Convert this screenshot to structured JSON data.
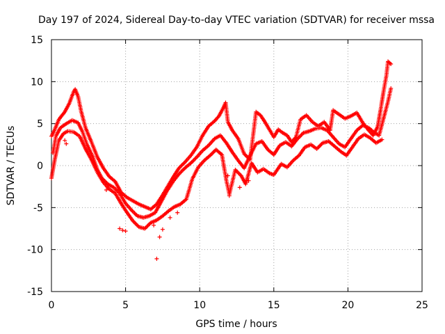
{
  "chart_data": {
    "type": "scatter",
    "title": "Day 197 of 2024, Sidereal Day-to-day VTEC variation (SDTVAR) for receiver mssa",
    "xlabel": "GPS time / hours",
    "ylabel": "SDTVAR / TECUs",
    "xlim": [
      0,
      25
    ],
    "ylim": [
      -15,
      15
    ],
    "x_ticks": [
      0,
      5,
      10,
      15,
      20,
      25
    ],
    "y_ticks": [
      -15,
      -10,
      -5,
      0,
      5,
      10,
      15
    ],
    "grid": true,
    "marker": "plus",
    "color": "#ff0000",
    "series": [
      {
        "name": "upper trace",
        "points": [
          [
            0.0,
            3.5
          ],
          [
            0.2,
            4.2
          ],
          [
            0.5,
            5.5
          ],
          [
            0.9,
            6.4
          ],
          [
            1.2,
            7.4
          ],
          [
            1.5,
            8.8
          ],
          [
            1.6,
            9.1
          ],
          [
            1.8,
            8.2
          ],
          [
            2.0,
            6.5
          ],
          [
            2.3,
            4.5
          ],
          [
            2.7,
            2.8
          ],
          [
            3.1,
            1.0
          ],
          [
            3.5,
            -0.3
          ],
          [
            3.9,
            -1.3
          ],
          [
            4.3,
            -1.9
          ],
          [
            4.7,
            -3.2
          ],
          [
            5.1,
            -3.8
          ],
          [
            5.5,
            -4.2
          ],
          [
            5.9,
            -4.6
          ],
          [
            6.3,
            -4.9
          ],
          [
            6.7,
            -5.2
          ],
          [
            7.1,
            -4.6
          ],
          [
            7.5,
            -3.5
          ],
          [
            7.8,
            -2.6
          ],
          [
            8.2,
            -1.4
          ],
          [
            8.6,
            -0.3
          ],
          [
            9.0,
            0.4
          ],
          [
            9.4,
            1.2
          ],
          [
            9.8,
            2.2
          ],
          [
            10.2,
            3.6
          ],
          [
            10.6,
            4.7
          ],
          [
            11.0,
            5.3
          ],
          [
            11.3,
            5.9
          ],
          [
            11.6,
            6.9
          ],
          [
            11.75,
            7.5
          ],
          [
            11.9,
            5.2
          ],
          [
            12.2,
            4.2
          ],
          [
            12.6,
            3.2
          ],
          [
            13.0,
            1.4
          ],
          [
            13.4,
            0.7
          ],
          [
            13.8,
            6.4
          ],
          [
            14.1,
            6.0
          ],
          [
            14.4,
            5.2
          ],
          [
            14.7,
            4.3
          ],
          [
            15.0,
            3.4
          ],
          [
            15.3,
            4.3
          ],
          [
            15.6,
            3.9
          ],
          [
            15.9,
            3.6
          ],
          [
            16.2,
            2.8
          ],
          [
            16.5,
            3.4
          ],
          [
            16.8,
            5.5
          ],
          [
            17.2,
            6.0
          ],
          [
            17.6,
            5.2
          ],
          [
            18.0,
            4.7
          ],
          [
            18.4,
            5.2
          ],
          [
            18.8,
            4.2
          ],
          [
            19.0,
            6.6
          ],
          [
            19.4,
            6.1
          ],
          [
            19.8,
            5.6
          ],
          [
            20.2,
            5.9
          ],
          [
            20.6,
            6.3
          ],
          [
            21.0,
            5.1
          ],
          [
            21.4,
            4.2
          ],
          [
            21.7,
            3.6
          ],
          [
            22.0,
            4.6
          ],
          [
            22.2,
            6.6
          ],
          [
            22.4,
            8.8
          ],
          [
            22.6,
            10.8
          ],
          [
            22.7,
            12.4
          ],
          [
            22.9,
            12.1
          ]
        ]
      },
      {
        "name": "middle trace",
        "points": [
          [
            0.1,
            1.5
          ],
          [
            0.3,
            3.5
          ],
          [
            0.6,
            4.5
          ],
          [
            1.0,
            5.0
          ],
          [
            1.4,
            5.4
          ],
          [
            1.8,
            5.1
          ],
          [
            2.1,
            4.0
          ],
          [
            2.4,
            2.5
          ],
          [
            2.8,
            1.0
          ],
          [
            3.1,
            -0.5
          ],
          [
            3.4,
            -1.5
          ],
          [
            3.8,
            -2.2
          ],
          [
            4.2,
            -2.6
          ],
          [
            4.6,
            -3.3
          ],
          [
            5.0,
            -4.5
          ],
          [
            5.4,
            -5.3
          ],
          [
            5.8,
            -6.0
          ],
          [
            6.2,
            -6.2
          ],
          [
            6.6,
            -6.0
          ],
          [
            7.0,
            -5.6
          ],
          [
            7.4,
            -4.3
          ],
          [
            7.8,
            -3.0
          ],
          [
            8.2,
            -1.9
          ],
          [
            8.6,
            -1.0
          ],
          [
            9.0,
            -0.3
          ],
          [
            9.4,
            0.3
          ],
          [
            9.8,
            1.0
          ],
          [
            10.2,
            1.8
          ],
          [
            10.6,
            2.4
          ],
          [
            11.0,
            3.2
          ],
          [
            11.4,
            3.6
          ],
          [
            11.8,
            2.7
          ],
          [
            12.2,
            1.6
          ],
          [
            12.6,
            0.6
          ],
          [
            13.0,
            -0.3
          ],
          [
            13.4,
            1.2
          ],
          [
            13.8,
            2.6
          ],
          [
            14.2,
            2.9
          ],
          [
            14.6,
            1.9
          ],
          [
            15.0,
            1.3
          ],
          [
            15.4,
            2.4
          ],
          [
            15.8,
            2.8
          ],
          [
            16.2,
            2.3
          ],
          [
            16.6,
            3.2
          ],
          [
            17.0,
            3.9
          ],
          [
            17.4,
            4.1
          ],
          [
            17.8,
            4.4
          ],
          [
            18.2,
            4.5
          ],
          [
            18.6,
            4.2
          ],
          [
            19.0,
            3.4
          ],
          [
            19.4,
            2.6
          ],
          [
            19.8,
            2.2
          ],
          [
            20.2,
            3.2
          ],
          [
            20.6,
            4.2
          ],
          [
            21.0,
            4.8
          ],
          [
            21.4,
            4.5
          ],
          [
            21.8,
            3.9
          ],
          [
            22.1,
            3.6
          ],
          [
            22.4,
            5.6
          ],
          [
            22.7,
            7.6
          ],
          [
            22.9,
            9.2
          ]
        ]
      },
      {
        "name": "lower trace",
        "points": [
          [
            0.0,
            -1.5
          ],
          [
            0.2,
            0.5
          ],
          [
            0.5,
            3.0
          ],
          [
            0.8,
            3.8
          ],
          [
            1.1,
            4.1
          ],
          [
            1.5,
            4.0
          ],
          [
            1.9,
            3.5
          ],
          [
            2.3,
            2.0
          ],
          [
            2.7,
            0.7
          ],
          [
            3.1,
            -0.8
          ],
          [
            3.5,
            -2.0
          ],
          [
            3.9,
            -2.8
          ],
          [
            4.3,
            -3.3
          ],
          [
            4.7,
            -4.5
          ],
          [
            5.1,
            -5.6
          ],
          [
            5.5,
            -6.6
          ],
          [
            5.9,
            -7.3
          ],
          [
            6.3,
            -7.5
          ],
          [
            6.7,
            -6.8
          ],
          [
            7.1,
            -6.5
          ],
          [
            7.5,
            -6.0
          ],
          [
            7.9,
            -5.4
          ],
          [
            8.3,
            -4.9
          ],
          [
            8.7,
            -4.6
          ],
          [
            9.1,
            -4.0
          ],
          [
            9.5,
            -1.6
          ],
          [
            9.9,
            -0.2
          ],
          [
            10.3,
            0.6
          ],
          [
            10.7,
            1.2
          ],
          [
            11.1,
            1.9
          ],
          [
            11.5,
            1.3
          ],
          [
            11.8,
            -1.8
          ],
          [
            12.0,
            -3.4
          ],
          [
            12.4,
            -0.5
          ],
          [
            12.8,
            -1.2
          ],
          [
            13.1,
            -2.2
          ],
          [
            13.5,
            0.3
          ],
          [
            13.9,
            -0.8
          ],
          [
            14.3,
            -0.4
          ],
          [
            14.7,
            -0.9
          ],
          [
            15.0,
            -1.1
          ],
          [
            15.5,
            0.2
          ],
          [
            15.9,
            -0.2
          ],
          [
            16.3,
            0.6
          ],
          [
            16.7,
            1.2
          ],
          [
            17.1,
            2.2
          ],
          [
            17.5,
            2.5
          ],
          [
            17.9,
            2.0
          ],
          [
            18.3,
            2.7
          ],
          [
            18.7,
            2.9
          ],
          [
            19.1,
            2.3
          ],
          [
            19.5,
            1.7
          ],
          [
            19.9,
            1.2
          ],
          [
            20.3,
            2.2
          ],
          [
            20.7,
            3.2
          ],
          [
            21.1,
            3.7
          ],
          [
            21.5,
            3.3
          ],
          [
            21.9,
            2.7
          ],
          [
            22.3,
            3.1
          ]
        ]
      },
      {
        "name": "scattered points",
        "points": [
          [
            0.9,
            3.0
          ],
          [
            1.0,
            2.6
          ],
          [
            4.6,
            -7.5
          ],
          [
            4.8,
            -7.7
          ],
          [
            5.0,
            -7.8
          ],
          [
            7.3,
            -8.5
          ],
          [
            7.5,
            -7.6
          ],
          [
            7.1,
            -11.1
          ],
          [
            8.0,
            -6.2
          ],
          [
            8.5,
            -5.6
          ],
          [
            3.7,
            -2.9
          ],
          [
            6.9,
            -7.1
          ],
          [
            12.0,
            -3.6
          ],
          [
            12.7,
            -2.6
          ],
          [
            13.3,
            -1.8
          ],
          [
            11.9,
            -1.2
          ]
        ]
      }
    ]
  }
}
